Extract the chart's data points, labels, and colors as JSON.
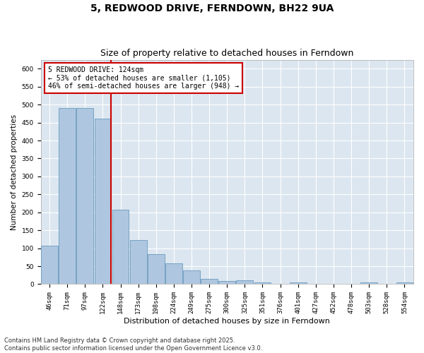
{
  "title": "5, REDWOOD DRIVE, FERNDOWN, BH22 9UA",
  "subtitle": "Size of property relative to detached houses in Ferndown",
  "xlabel": "Distribution of detached houses by size in Ferndown",
  "ylabel": "Number of detached properties",
  "categories": [
    "46sqm",
    "71sqm",
    "97sqm",
    "122sqm",
    "148sqm",
    "173sqm",
    "198sqm",
    "224sqm",
    "249sqm",
    "275sqm",
    "300sqm",
    "325sqm",
    "351sqm",
    "376sqm",
    "401sqm",
    "427sqm",
    "452sqm",
    "478sqm",
    "503sqm",
    "528sqm",
    "554sqm"
  ],
  "bar_values": [
    107,
    490,
    490,
    460,
    207,
    122,
    83,
    57,
    38,
    14,
    8,
    10,
    5,
    0,
    5,
    0,
    0,
    0,
    5,
    0,
    5
  ],
  "bar_color": "#aec6df",
  "bar_edge_color": "#6a9bbf",
  "vline_index": 3,
  "vline_color": "#cc0000",
  "annotation_text": "5 REDWOOD DRIVE: 124sqm\n← 53% of detached houses are smaller (1,105)\n46% of semi-detached houses are larger (948) →",
  "annotation_box_facecolor": "#ffffff",
  "annotation_box_edgecolor": "#cc0000",
  "ylim": [
    0,
    625
  ],
  "yticks": [
    0,
    50,
    100,
    150,
    200,
    250,
    300,
    350,
    400,
    450,
    500,
    550,
    600
  ],
  "grid_color": "#ffffff",
  "plot_bg_color": "#dce6f0",
  "footer": "Contains HM Land Registry data © Crown copyright and database right 2025.\nContains public sector information licensed under the Open Government Licence v3.0.",
  "title_fontsize": 10,
  "subtitle_fontsize": 9,
  "xlabel_fontsize": 8,
  "ylabel_fontsize": 7.5,
  "tick_fontsize": 6.5,
  "annot_fontsize": 7,
  "footer_fontsize": 6
}
